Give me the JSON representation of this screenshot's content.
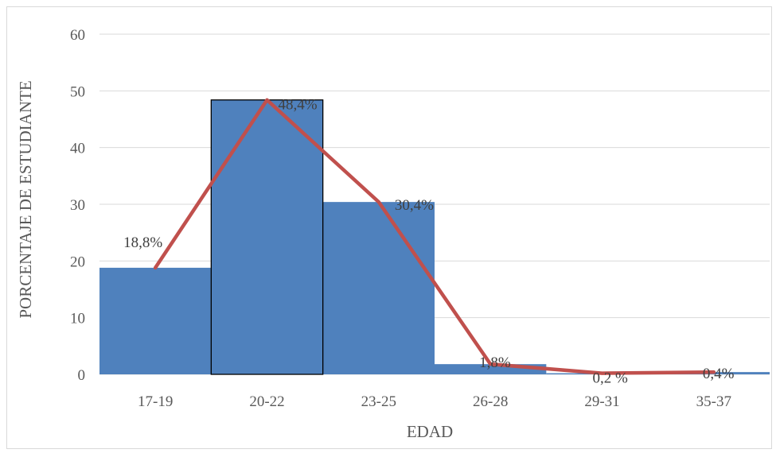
{
  "chart_data": {
    "type": "bar",
    "categories": [
      "17-19",
      "20-22",
      "23-25",
      "26-28",
      "29-31",
      "35-37"
    ],
    "values": [
      18.8,
      48.4,
      30.4,
      1.8,
      0.2,
      0.4
    ],
    "data_labels": [
      "18,8%",
      "48,4%",
      "30,4%",
      "1,8%",
      "0,2 %",
      "0,4%"
    ],
    "overlay_line": {
      "values": [
        18.8,
        48.4,
        30.4,
        1.8,
        0.2,
        0.4
      ],
      "color": "#C0504D"
    },
    "xlabel": "EDAD",
    "ylabel": "PORCENTAJE DE ESTUDIANTE",
    "ylim": [
      0,
      60
    ],
    "yticks": [
      "0",
      "10",
      "20",
      "30",
      "40",
      "50",
      "60"
    ],
    "grid": true,
    "bar_color": "#4F81BD",
    "highlight_outline_index": 1
  }
}
